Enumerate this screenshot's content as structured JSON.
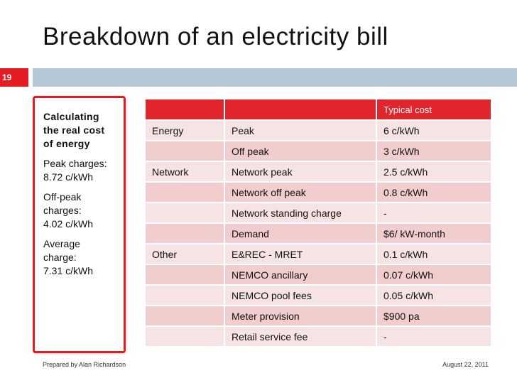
{
  "slide": {
    "title": "Breakdown of an electricity bill",
    "number": "19"
  },
  "sidebar": {
    "heading": "Calculating\nthe real cost\nof energy",
    "peak": "Peak charges:\n8.72 c/kWh",
    "offpeak": "Off-peak\ncharges:\n4.02 c/kWh",
    "average": "Average\ncharge:\n7.31 c/kWh"
  },
  "table": {
    "headers": [
      "",
      "",
      "Typical cost"
    ],
    "rows": [
      [
        "Energy",
        "Peak",
        "6 c/kWh"
      ],
      [
        "",
        "Off peak",
        "3 c/kWh"
      ],
      [
        "Network",
        "Network peak",
        "2.5 c/kWh"
      ],
      [
        "",
        "Network off peak",
        "0.8 c/kWh"
      ],
      [
        "",
        "Network standing charge",
        "-"
      ],
      [
        "",
        "Demand",
        "$6/ kW-month"
      ],
      [
        "Other",
        "E&REC - MRET",
        "0.1 c/kWh"
      ],
      [
        "",
        "NEMCO ancillary",
        "0.07 c/kWh"
      ],
      [
        "",
        "NEMCO pool fees",
        "0.05 c/kWh"
      ],
      [
        "",
        "Meter provision",
        "$900 pa"
      ],
      [
        "",
        "Retail service fee",
        "-"
      ]
    ]
  },
  "footer": {
    "author": "Prepared by Alan Richardson",
    "date": "August 22, 2011"
  },
  "colors": {
    "accent": "#e31b23",
    "title_bar": "#b6c7d6",
    "row_dark": "#f2cdcd",
    "row_light": "#f6e4e4"
  }
}
